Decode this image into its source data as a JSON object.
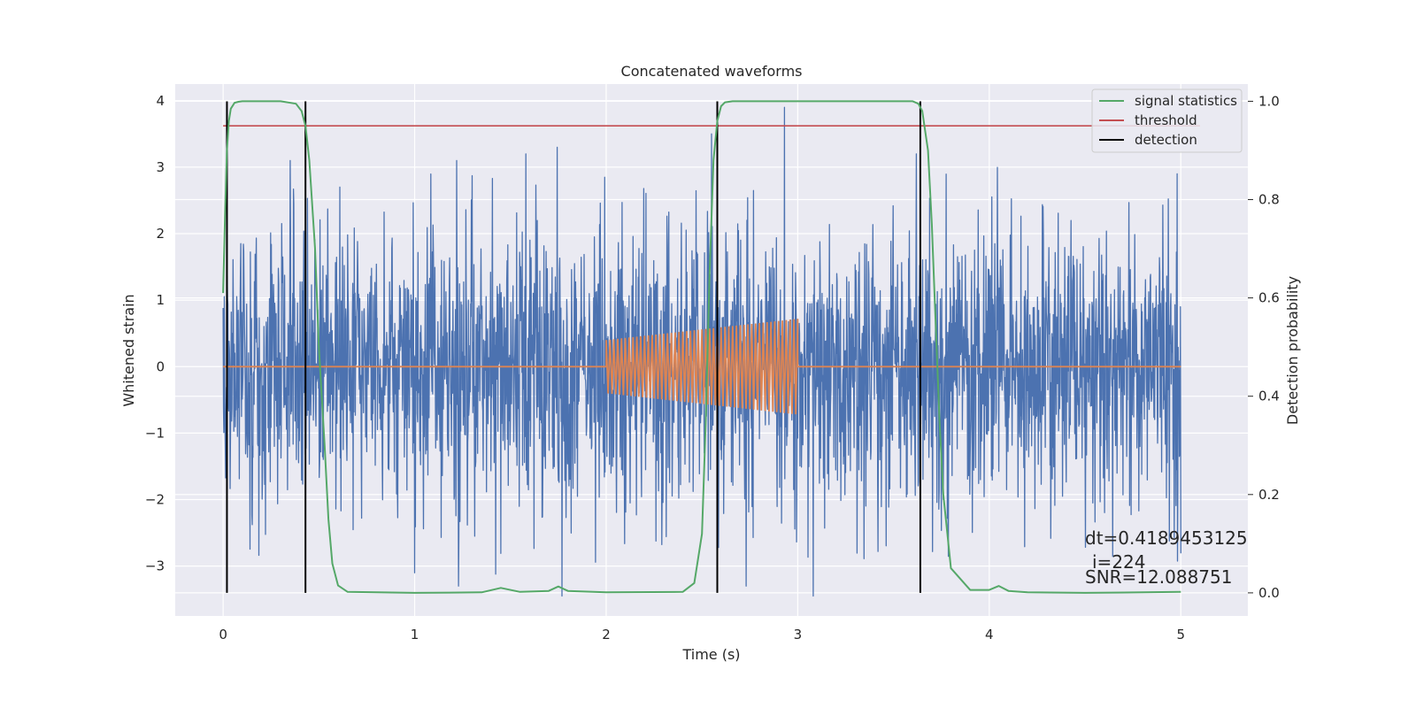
{
  "chart_data": {
    "type": "line",
    "title": "Concatenated waveforms",
    "xlabel": "Time (s)",
    "ylabel": "Whitened strain",
    "y2label": "Detection probability",
    "xlim": [
      -0.25,
      5.35
    ],
    "ylim": [
      -3.75,
      4.25
    ],
    "y2lim": [
      -0.047,
      1.035
    ],
    "x_ticks": [
      0,
      1,
      2,
      3,
      4,
      5
    ],
    "y_ticks": [
      -3,
      -2,
      -1,
      0,
      1,
      2,
      3,
      4
    ],
    "y2_ticks": [
      0.0,
      0.2,
      0.4,
      0.6,
      0.8,
      1.0
    ],
    "grid": true,
    "legend_position": "top-right",
    "colors": {
      "strain": "#4c72b0",
      "template": "#dd8452",
      "signal_statistics": "#55a868",
      "threshold": "#c44e52",
      "detection": "#000000",
      "background": "#eaeaf2"
    },
    "series": [
      {
        "name": "signal statistics",
        "axis": "right",
        "x": [
          0.0,
          0.01,
          0.02,
          0.03,
          0.04,
          0.06,
          0.08,
          0.1,
          0.2,
          0.3,
          0.38,
          0.41,
          0.43,
          0.45,
          0.48,
          0.5,
          0.53,
          0.55,
          0.57,
          0.6,
          0.65,
          1.0,
          1.35,
          1.45,
          1.55,
          1.7,
          1.75,
          1.8,
          2.0,
          2.4,
          2.46,
          2.5,
          2.52,
          2.54,
          2.56,
          2.58,
          2.6,
          2.62,
          2.66,
          2.75,
          3.0,
          3.5,
          3.6,
          3.63,
          3.65,
          3.68,
          3.7,
          3.72,
          3.74,
          3.76,
          3.8,
          3.9,
          4.0,
          4.05,
          4.1,
          4.2,
          4.5,
          5.0
        ],
        "y": [
          0.61,
          0.77,
          0.9,
          0.96,
          0.985,
          0.997,
          0.999,
          1.0,
          1.0,
          1.0,
          0.995,
          0.98,
          0.95,
          0.88,
          0.7,
          0.5,
          0.3,
          0.15,
          0.06,
          0.015,
          0.002,
          0.0,
          0.001,
          0.01,
          0.002,
          0.004,
          0.013,
          0.004,
          0.001,
          0.002,
          0.02,
          0.12,
          0.35,
          0.65,
          0.88,
          0.96,
          0.99,
          0.998,
          1.0,
          1.0,
          1.0,
          1.0,
          1.0,
          0.995,
          0.98,
          0.9,
          0.75,
          0.55,
          0.35,
          0.2,
          0.05,
          0.006,
          0.006,
          0.014,
          0.004,
          0.001,
          0.0,
          0.002
        ]
      },
      {
        "name": "threshold",
        "axis": "right",
        "x": [
          0.0,
          5.1
        ],
        "y": [
          0.95,
          0.95
        ]
      },
      {
        "name": "detection",
        "axis": "right",
        "x": [
          0.02,
          0.43,
          2.58,
          3.64
        ],
        "y_range": [
          0.0,
          1.0
        ]
      }
    ],
    "strain_series": {
      "axis": "left",
      "x_range": [
        0,
        5
      ],
      "typical_amplitude": 1.0,
      "peaks": [
        {
          "x": 0.35,
          "y": 3.1
        },
        {
          "x": 0.61,
          "y": 2.7
        },
        {
          "x": 1.22,
          "y": 3.1
        },
        {
          "x": 1.58,
          "y": 3.2
        },
        {
          "x": 2.93,
          "y": 3.9
        },
        {
          "x": 2.55,
          "y": 3.5
        },
        {
          "x": 3.62,
          "y": 3.2
        },
        {
          "x": 4.98,
          "y": 2.9
        },
        {
          "x": 1.77,
          "y": -3.45
        },
        {
          "x": 3.08,
          "y": -3.45
        },
        {
          "x": 1.0,
          "y": -3.1
        },
        {
          "x": 2.73,
          "y": -3.3
        }
      ]
    },
    "template_series": {
      "axis": "left",
      "x_range": [
        2.0,
        3.0
      ],
      "amplitude_start": 0.4,
      "amplitude_end": 0.72,
      "value_outside": 0.0
    },
    "annotations": [
      "dt=0.4189453125",
      "i=224",
      "SNR=12.088751"
    ]
  }
}
